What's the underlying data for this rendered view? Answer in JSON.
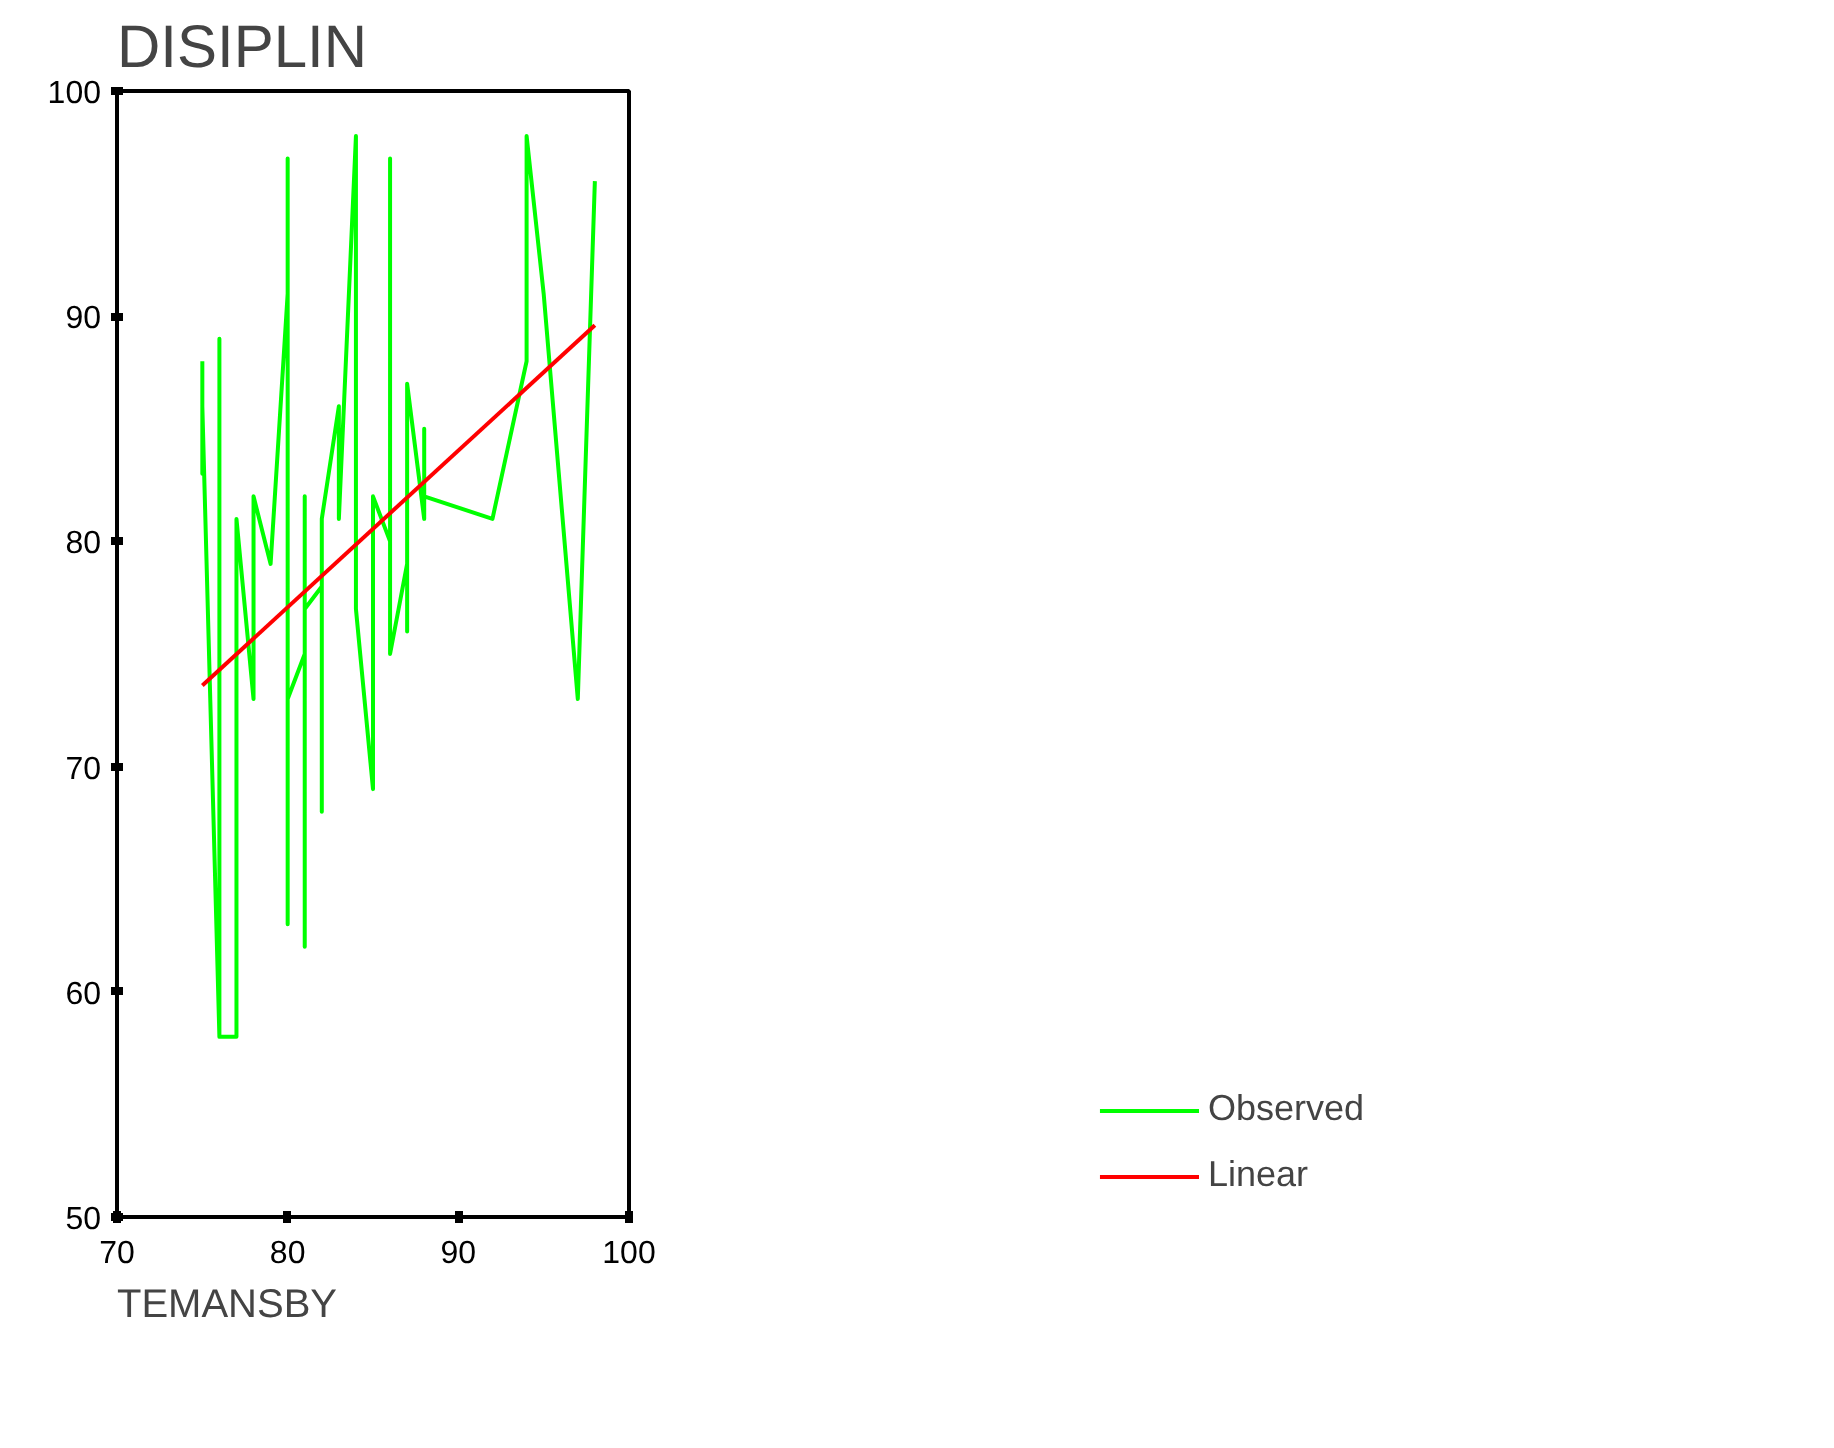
{
  "chart_data": {
    "type": "line",
    "title": "DISIPLIN",
    "xlabel": "TEMANSBY",
    "xlim": [
      70,
      100
    ],
    "ylim": [
      50,
      100
    ],
    "xticks": [
      70,
      80,
      90,
      100
    ],
    "yticks": [
      50,
      60,
      70,
      80,
      90,
      100
    ],
    "grid": false,
    "legend": "right",
    "marker": "none",
    "series": [
      {
        "name": "Observed",
        "color": "#00ff00",
        "x": [
          75,
          75,
          75,
          76,
          76,
          76,
          77,
          77,
          78,
          78,
          79,
          80,
          80,
          80,
          80,
          81,
          81,
          81,
          81,
          82,
          82,
          82,
          83,
          83,
          84,
          84,
          85,
          85,
          86,
          86,
          86,
          87,
          87,
          87,
          88,
          88,
          88,
          92,
          94,
          94,
          95,
          97,
          98
        ],
        "values": [
          88,
          83,
          86,
          58,
          89,
          58,
          58,
          81,
          73,
          82,
          79,
          91,
          97,
          63,
          73,
          75,
          62,
          82,
          77,
          78,
          68,
          81,
          86,
          81,
          98,
          77,
          69,
          82,
          80,
          97,
          75,
          79,
          76,
          87,
          81,
          85,
          82,
          81,
          88,
          98,
          91,
          73,
          96
        ]
      },
      {
        "name": "Linear",
        "color": "#ff0000",
        "x": [
          75,
          98
        ],
        "values": [
          73.6,
          89.6
        ]
      }
    ]
  }
}
